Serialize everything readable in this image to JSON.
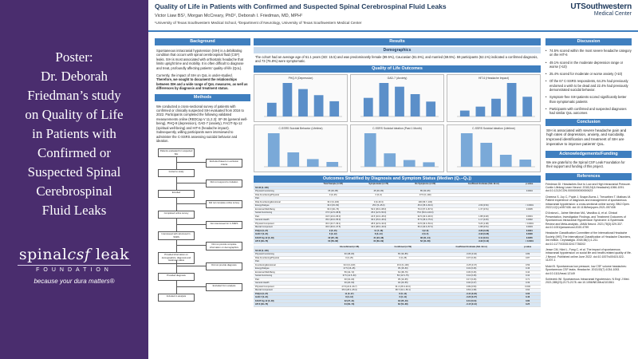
{
  "caption": [
    "Poster:",
    "Dr. Deborah",
    "Friedman’s study",
    "on Quality of Life",
    "in Patients with",
    "Confirmed or",
    "Suspected Spinal",
    "Cerebrospinal",
    "Fluid Leaks"
  ],
  "logo": {
    "main_a": "spinal",
    "main_b": "csf",
    "main_c": " leak",
    "sub": "FOUNDATION",
    "tagline": "because your dura matters®"
  },
  "poster": {
    "title": "Quality of Life in Patients with Confirmed and Suspected Spinal Cerebrospinal Fluid Leaks",
    "authors": "Victor Liaw BS¹, Morgan McCreary, PhD², Deborah I. Friedman, MD, MPH²",
    "affiliation": "¹University of Texas Southwestern Medical School, ²Department of Neurology, University of Texas Southwestern Medical Center",
    "logo_main": "UTSouthwestern",
    "logo_sub": "Medical Center"
  },
  "background": {
    "heading": "Background",
    "p1": "Spontaneous intracranial hypotension (SIH) is a debilitating condition that occurs with spinal cerebrospinal fluid (CSF) leaks. SIH is most associated with orthostatic headache that limits upright time and mobility. It is often difficult to diagnose and treat, profoundly affecting patients’ quality-of-life (QoL).",
    "p2a": "Currently, the impact of SIH on QoL is under-studied. ",
    "p2b": "Therefore, we sought to document the relationships between SIH and a wide range of QoL measures, as well as differences by diagnosis and treatment status."
  },
  "methods": {
    "heading": "Methods",
    "text": "We conducted a cross-sectional survey of patients with confirmed or clinically suspected SIH evaluated from 2016 to 2022. Participants completed the following validated measurements online (REDCap V 11.2.3): SF-36 (general well-being), PHQ-9 (depression), GAD-7 (anxiety), FACIT-Sp-12 (spiritual well-being) and HIT-6 (headache impact). Subsequently, willing participants were interviewed to administer the C-SSRS assessing suicidal behavior and ideation.",
    "flow": [
      "Patients evaluated for suspected SIH",
      "Excluded based on exclusion criteria",
      "Invited to study",
      "Did not respond to invitation",
      "Enrolled",
      "Did not complete online survey",
      "Completed online survey",
      "Not interviewed for C-SSRS",
      "Interviewed with structured C-SSRS",
      "Did not provide complete information on demographics",
      "Provided information on demographics, diagnosis and treatment status",
      "Did not provide diagnosis",
      "Provided diagnosis",
      "Excluded from analysis",
      "Included in analysis"
    ]
  },
  "results": {
    "heading": "Results",
    "demo_heading": "Demographics",
    "demo_text": "The cohort had an average age of 51.1 years (SD: 15.5) and was predominantly female (89.5%), Caucasian (81.5%), and married (69.5%). 59 participants (62.1%) indicated a confirmed diagnosis, and 73 (76.8%) were symptomatic.",
    "qol_heading": "Quality of Life Outcomes",
    "chart_titles": [
      "PHQ-9 (Depression)",
      "GAD-7 (Anxiety)",
      "HIT-6 (Headache Impact)",
      "C-SSRS Suicidal Behavior (Lifetime)",
      "C-SSRS Suicidal Ideation (Past 1 Month)",
      "C-SSRS Suicidal Ideation (Lifetime)"
    ],
    "table_heading": "Outcomes Stratified by Diagnosis and Symptom Status (Median (Q₁–Q₃))",
    "table_cols1": [
      "",
      "Total Sample (n=95)",
      "Symptomatic (n=73)",
      "No Symptoms (n=22)",
      "Coefficient Estimate (Std. Error)",
      "p-value"
    ],
    "table_cols2": [
      "",
      "Unconfirmed (n=36)",
      "Confirmed (n=59)",
      "Coefficient Estimate (Std. Error)",
      "p-value"
    ],
    "rows1": [
      {
        "k": "SF-36 (0–100)",
        "v": [
          "",
          "",
          "",
          "",
          ""
        ],
        "grp": true
      },
      {
        "k": "Physical Functioning",
        "v": [
          "65 (30–85)",
          "45 (30–80)",
          "85 (60–95)",
          "",
          "0.0004"
        ]
      },
      {
        "k": "Role Functioning/Physical",
        "v": [
          "0 (0–25)",
          "0 (0–0)",
          "37.5 (0–100)",
          "",
          ""
        ]
      },
      {
        "k": "Pain",
        "v": [
          "",
          "",
          "",
          "",
          ""
        ]
      },
      {
        "k": "Role Functioning/Emotional",
        "v": [
          "33.3 (0–100)",
          "0 (0–33.3)",
          "100 (66.7–100)",
          "",
          ""
        ]
      },
      {
        "k": "Energy/Fatigue",
        "v": [
          "30.0 (15–50)",
          "25.0 (5–45.0)",
          "45.0 (35.0–60.0)",
          "2.09 (0.52)",
          "< 0.0001"
        ]
      },
      {
        "k": "Emotional Well-Being",
        "v": [
          "60.0 (46–76)",
          "52.0 (36.0–68.0)",
          "76.0 (67.0–87.0)",
          "1.37 (0.51)",
          "0.0005"
        ]
      },
      {
        "k": "Social Functioning",
        "v": [
          "37.5 (12.5–68.8)",
          "25.0 (12.5–50.0)",
          "75.0 (50.0–100.0)",
          "",
          ""
        ]
      },
      {
        "k": "Pain",
        "v": [
          "32.5 (10.0–65.0)",
          "22.5 (10.0–45.0)",
          "62.5 (40.0–90.0)",
          "1.88 (0.48)",
          "0.0001"
        ]
      },
      {
        "k": "General Health",
        "v": [
          "35.0 (20.0–55.0)",
          "30.0 (15.0–45.0)",
          "57.5 (35.0–75.0)",
          "1.17 (0.45)",
          "0.0092"
        ]
      },
      {
        "k": "Physical Component",
        "v": [
          "30.3 (24.7–39.1)",
          "28.6 (22.9–34.0)",
          "44.5 (33.0–53.2)",
          "5.26 (1.08)",
          "< 0.0001"
        ]
      },
      {
        "k": "Mental Component",
        "v": [
          "36.6 (30.0–47.5)",
          "34.0 (28.0–43.0)",
          "50.2 (40.0–57.0)",
          "1.88 (0.51)",
          "0.0003"
        ]
      },
      {
        "k": "PHQ-9 (0–27)",
        "v": [
          "9 (5–15)",
          "11 (7–16)",
          "4 (2–8)",
          "-0.83 (0.20)",
          "0.0001"
        ],
        "grp": true
      },
      {
        "k": "GAD-7 (0–21)",
        "v": [
          "6 (2–12)",
          "8 (3–13)",
          "2 (0–5)",
          "-0.90 (0.26)",
          "0.0006"
        ],
        "grp": true
      },
      {
        "k": "FACIT-Sp-12 (0–48)",
        "v": [
          "32 (25–40)",
          "31 (23–38)",
          "38 (31–44)",
          "0.11 (0.04)",
          "0.0055"
        ],
        "grp": true
      },
      {
        "k": "HIT-6 (36–78)",
        "v": [
          "63 (56–68)",
          "64 (60–69)",
          "52 (44–58)",
          "-0.62 (0.12)",
          "< 0.0001"
        ],
        "grp": true
      }
    ],
    "rows2": [
      {
        "k": "SF-36 (0–100)",
        "v": [
          "",
          "",
          "",
          ""
        ],
        "grp": true
      },
      {
        "k": "Physical Functioning",
        "v": [
          "60 (38–83)",
          "65 (30–85)",
          "-0.06 (0.42)",
          "0.89"
        ]
      },
      {
        "k": "Role Functioning/Physical",
        "v": [
          "0 (0–25)",
          "0 (0–25)",
          "0.07 (0.46)",
          "0.87"
        ]
      },
      {
        "k": "Pain",
        "v": [
          "",
          "",
          "",
          ""
        ]
      },
      {
        "k": "Functioning/Emotional",
        "v": [
          "33.3 (0–100)",
          "33.3 (0–100)",
          "-0.25 (0.47)",
          "0.59"
        ]
      },
      {
        "k": "Energy/Fatigue",
        "v": [
          "27.5 (15–45)",
          "35 (15–50)",
          "0.34 (0.46)",
          "0.46"
        ]
      },
      {
        "k": "Emotional Well-Being",
        "v": [
          "56 (42–72)",
          "64 (48–76)",
          "0.36 (0.46)",
          "0.44"
        ]
      },
      {
        "k": "Social Functioning",
        "v": [
          "37.5 (12.5–63)",
          "50 (12.5–75)",
          "0.44 (0.46)",
          "0.34"
        ]
      },
      {
        "k": "Pain",
        "v": [
          "30 (10–60)",
          "35 (10–65)",
          "0.17 (0.46)",
          "0.71"
        ]
      },
      {
        "k": "General Health",
        "v": [
          "30 (20–50)",
          "40 (20–55)",
          "0.40 (0.47)",
          "0.39"
        ]
      },
      {
        "k": "Physical Component",
        "v": [
          "27.8 (22.6–36.7)",
          "31.2 (25.9–40.0)",
          "0.99 (0.50)",
          "0.049"
        ]
      },
      {
        "k": "Mental Component",
        "v": [
          "35.6 (28.1–45.4)",
          "38.7 (31.1–50.1)",
          "0.63 (1.38)",
          "0.64"
        ]
      },
      {
        "k": "PHQ-9 (0–27)",
        "v": [
          "11 (5–17)",
          "8 (5–14)",
          "-0.44 (0.23)",
          "0.06"
        ],
        "grp": true
      },
      {
        "k": "GAD-7 (0–21)",
        "v": [
          "8 (3–13)",
          "6 (2–11)",
          "-0.20 (0.27)",
          "0.46"
        ],
        "grp": true
      },
      {
        "k": "FACIT-Sp-12 (0–48)",
        "v": [
          "32 (27–41)",
          "33 (25–40)",
          "0.01 (0.04)",
          "0.80"
        ],
        "grp": true
      },
      {
        "k": "HIT-6 (36–78)",
        "v": [
          "64 (60–70)",
          "62 (54–68)",
          "-0.15 (0.13)",
          "0.25"
        ],
        "grp": true
      }
    ]
  },
  "discussion": {
    "heading": "Discussion",
    "bullets": [
      "74.5% scored within the most severe headache category on the HIT-6",
      "49.1% scored in the moderate depression range or worse (>10)",
      "25.4% scored for moderate or worse anxiety (>10)",
      "Of the 67 C-SSRS respondents, 64.2% had previously endorsed a wish to be dead and 22.4% had previously demonstrated suicidal behavior.",
      "Symptom-free SIH patients scored significantly better than symptomatic patients",
      "Participants with confirmed and suspected diagnoses had similar QoL outcomes"
    ]
  },
  "conclusion": {
    "heading": "Conclusion",
    "text": "SIH is associated with severe headache pain and high rates of depression, anxiety, and suicidality. Improved identification and treatment of SIH are imperative to improve patients’ QoL."
  },
  "ack": {
    "heading": "Acknowledgements/Funding",
    "text": "We are grateful to the Spinal CSF Leak Foundation for their support and funding of this project."
  },
  "references": {
    "heading": "References",
    "items": [
      "Friedman DI. Headaches Due to Low and High Intracranial Pressure. Contin Lifelong Learn Neurol. 2018;24(4-Headache):1066-1091. doi:10.1212/CON.0000000000000623",
      "Cheema S, Joy C, Pople J, Snape-Burns J, Trevarthen T, Matharu M. Patient experience of diagnosis and management of spontaneous intracranial hypotension: a cross-sectional online survey. BMJ Open. 2022;12(1):e057438. doi:10.1136/bmjopen-2021-057438",
      "D’Antona L, Jaime Merchan MA, Vassiliou A, et al. Clinical Presentation, Investigation Findings, and Treatment Outcomes of Spontaneous Intracranial Hypotension Syndrome: A Systematic Review and Meta-analysis. JAMA Neurol. 2021;78(3):329-337. doi:10.1001/jamaneurol.2020.4799",
      "Headache Classification Committee of the International Headache Society (IHS) The International Classification of Headache Disorders, 3rd edition. Cephalalgia. 2018;38(1):1-211. doi:10.1177/0333102417738202",
      "Jesse CM, Häni L, Fung C, et al. The impact of spontaneous intracranial hypotension on social life and health-related quality of life. J Neurol. Published online June 2022. doi:10.1007/s00415-022-11207-1",
      "Mokri B. Spontaneous low pressure, low CSF volume headaches: Spontaneous CSF leaks. Headache. 2013;53(7):1034-1053. doi:10.1111/head.12149",
      "Schievink WI. Spontaneous Intracranial Hypotension. N Engl J Med. 2021;385(23):2173-2178. doi:10.1056/NEJMra2101561"
    ]
  }
}
